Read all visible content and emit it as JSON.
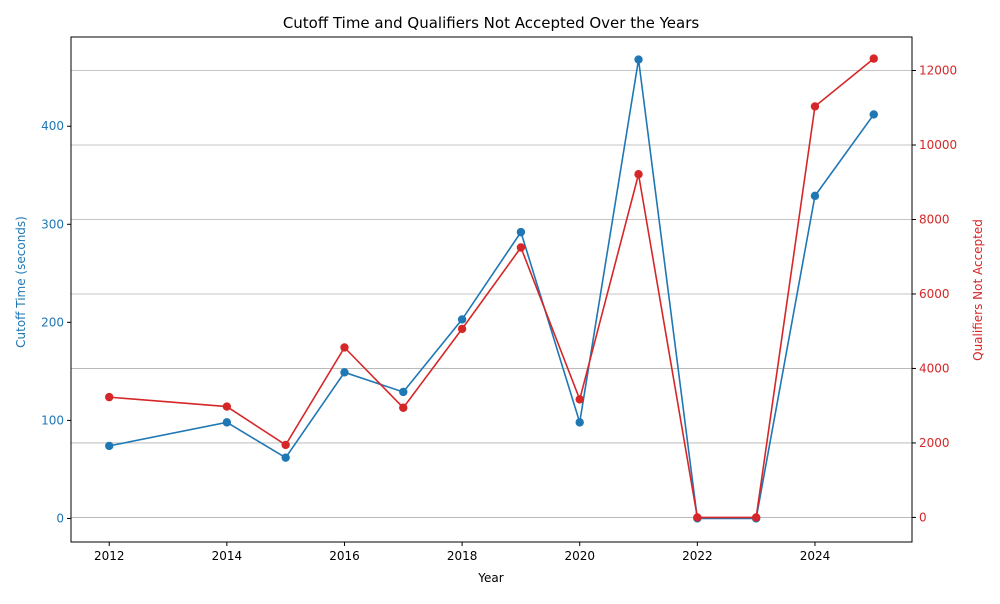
{
  "chart_data": {
    "type": "line",
    "title": "Cutoff Time and Qualifiers Not Accepted Over the Years",
    "xlabel": "Year",
    "ylabel_left": "Cutoff Time (seconds)",
    "ylabel_right": "Qualifiers Not Accepted",
    "x": [
      2012,
      2014,
      2015,
      2016,
      2017,
      2018,
      2019,
      2020,
      2021,
      2022,
      2023,
      2024,
      2025
    ],
    "series": [
      {
        "name": "Cutoff Time (seconds)",
        "axis": "left",
        "color": "#1f77b4",
        "values": [
          74,
          98,
          62,
          149,
          129,
          203,
          292,
          98,
          468,
          0,
          0,
          329,
          412
        ]
      },
      {
        "name": "Qualifiers Not Accepted",
        "axis": "right",
        "color": "#d62728",
        "values": [
          3230,
          2976,
          1947,
          4563,
          2945,
          5062,
          7248,
          3170,
          9215,
          0,
          0,
          11036,
          12320
        ]
      }
    ],
    "xlim": [
      2011.35,
      2025.65
    ],
    "ylim_left": [
      -24,
      491
    ],
    "ylim_right": [
      -660,
      12900
    ],
    "xticks": [
      2012,
      2014,
      2016,
      2018,
      2020,
      2022,
      2024
    ],
    "yticks_left": [
      0,
      100,
      200,
      300,
      400
    ],
    "yticks_right": [
      0,
      2000,
      4000,
      6000,
      8000,
      10000,
      12000
    ],
    "grid": "horizontal, right axis",
    "legend": "none"
  }
}
